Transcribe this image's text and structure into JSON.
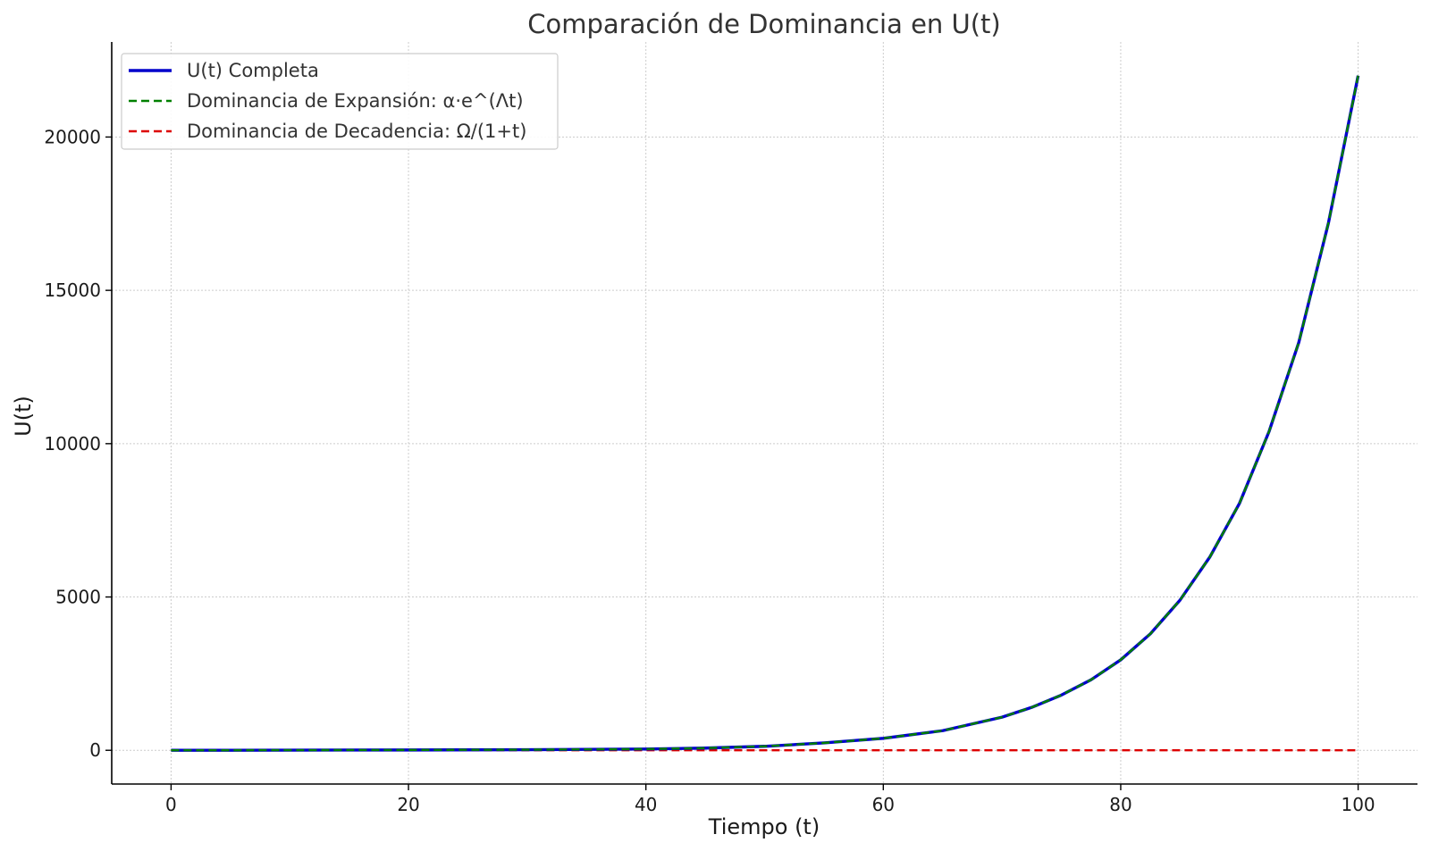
{
  "chart_data": {
    "type": "line",
    "title": "Comparación de Dominancia en U(t)",
    "xlabel": "Tiempo (t)",
    "ylabel": "U(t)",
    "xlim": [
      -5,
      105
    ],
    "ylim": [
      -1100,
      23100
    ],
    "x_ticks": [
      0,
      20,
      40,
      60,
      80,
      100
    ],
    "y_ticks": [
      0,
      5000,
      10000,
      15000,
      20000
    ],
    "grid": true,
    "legend_position": "top-left",
    "x": [
      0,
      10,
      20,
      30,
      40,
      45,
      50,
      55,
      60,
      65,
      70,
      72.5,
      75,
      77.5,
      80,
      82.5,
      85,
      87.5,
      90,
      92.5,
      95,
      97.5,
      100
    ],
    "series": [
      {
        "name": "U(t) Completa",
        "color": "#0000cc",
        "style": "solid",
        "values": [
          0,
          5,
          10,
          20,
          40,
          72,
          130,
          240,
          390,
          640,
          1080,
          1400,
          1800,
          2300,
          2950,
          3800,
          4900,
          6300,
          8050,
          10400,
          13300,
          17200,
          22000
        ]
      },
      {
        "name": "Dominancia de Expansión: α·e^(Λt)",
        "color": "#008000",
        "style": "dashed",
        "values": [
          0,
          5,
          10,
          20,
          40,
          72,
          130,
          240,
          390,
          640,
          1080,
          1400,
          1800,
          2300,
          2950,
          3800,
          4900,
          6300,
          8050,
          10400,
          13300,
          17200,
          22000
        ]
      },
      {
        "name": "Dominancia de Decadencia: Ω/(1+t)",
        "color": "#dd0000",
        "style": "dashed",
        "values": [
          0,
          0,
          0,
          0,
          0,
          0,
          0,
          0,
          0,
          0,
          0,
          0,
          0,
          0,
          0,
          0,
          0,
          0,
          0,
          0,
          0,
          0,
          0
        ]
      }
    ]
  }
}
